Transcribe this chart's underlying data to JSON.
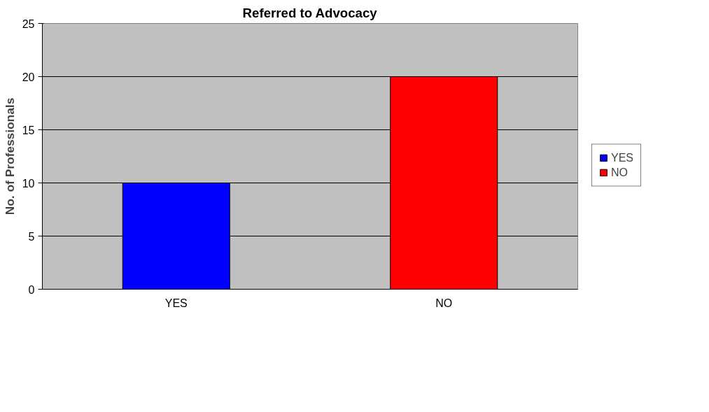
{
  "chart_data": {
    "type": "bar",
    "title": "Referred to Advocacy",
    "ylabel": "No. of Professionals",
    "categories": [
      "YES",
      "NO"
    ],
    "series": [
      {
        "name": "YES",
        "color": "#0000ff",
        "values": [
          10,
          null
        ]
      },
      {
        "name": "NO",
        "color": "#ff0000",
        "values": [
          null,
          20
        ]
      }
    ],
    "ylim": [
      0,
      25
    ],
    "yticks": [
      0,
      5,
      10,
      15,
      20,
      25
    ],
    "grid": "y",
    "legend": "right"
  }
}
